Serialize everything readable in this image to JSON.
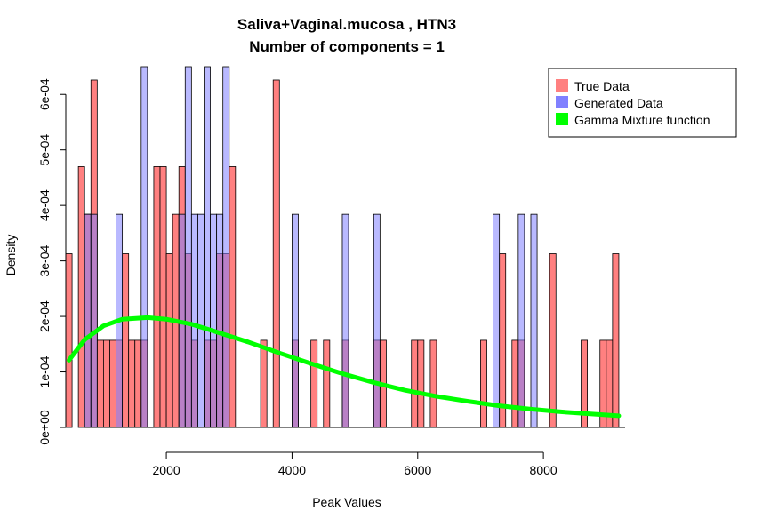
{
  "chart_data": {
    "type": "histogram",
    "title": "Saliva+Vaginal.mucosa , HTN3",
    "subtitle": "Number of components =  1",
    "xlabel": "Peak Values",
    "ylabel": "Density",
    "xlim": [
      400,
      9300
    ],
    "ylim": [
      0,
      0.00065
    ],
    "x_ticks": [
      2000,
      4000,
      6000,
      8000
    ],
    "x_tick_labels": [
      "2000",
      "4000",
      "6000",
      "8000"
    ],
    "y_ticks": [
      0,
      0.0001,
      0.0002,
      0.0003,
      0.0004,
      0.0005,
      0.0006
    ],
    "y_tick_labels": [
      "0e+00",
      "1e-04",
      "2e-04",
      "3e-04",
      "4e-04",
      "5e-04",
      "6e-04"
    ],
    "bin_width": 100,
    "legend": {
      "position": "top-right",
      "entries": [
        {
          "label": "True Data",
          "color": "#ff8080"
        },
        {
          "label": "Generated Data",
          "color": "#8080ff"
        },
        {
          "label": "Gamma Mixture function",
          "color": "#00ff00"
        }
      ]
    },
    "series": [
      {
        "name": "True Data",
        "color": "#ff8080",
        "opacity": 1,
        "bins": [
          [
            400,
            0.000313
          ],
          [
            600,
            0.00047
          ],
          [
            700,
            0.000384
          ],
          [
            800,
            0.000626
          ],
          [
            900,
            0.000157
          ],
          [
            1000,
            0.000157
          ],
          [
            1100,
            0.000157
          ],
          [
            1200,
            0.000157
          ],
          [
            1300,
            0.000313
          ],
          [
            1400,
            0.000157
          ],
          [
            1500,
            0.000157
          ],
          [
            1600,
            0.000157
          ],
          [
            1800,
            0.00047
          ],
          [
            1900,
            0.00047
          ],
          [
            2000,
            0.000313
          ],
          [
            2100,
            0.000384
          ],
          [
            2200,
            0.00047
          ],
          [
            2300,
            0.000313
          ],
          [
            2400,
            0.000157
          ],
          [
            2600,
            0.000157
          ],
          [
            2700,
            0.000157
          ],
          [
            2800,
            0.000313
          ],
          [
            2900,
            0.000313
          ],
          [
            3000,
            0.00047
          ],
          [
            3500,
            0.000157
          ],
          [
            3700,
            0.000626
          ],
          [
            4000,
            0.000157
          ],
          [
            4300,
            0.000157
          ],
          [
            4500,
            0.000157
          ],
          [
            4800,
            0.000157
          ],
          [
            5300,
            0.000157
          ],
          [
            5400,
            0.000157
          ],
          [
            5900,
            0.000157
          ],
          [
            6000,
            0.000157
          ],
          [
            6200,
            0.000157
          ],
          [
            7000,
            0.000157
          ],
          [
            7300,
            0.000313
          ],
          [
            7500,
            0.000157
          ],
          [
            7600,
            0.000157
          ],
          [
            8100,
            0.000313
          ],
          [
            8600,
            0.000157
          ],
          [
            8900,
            0.000157
          ],
          [
            9000,
            0.000157
          ],
          [
            9100,
            0.000313
          ]
        ]
      },
      {
        "name": "Generated Data",
        "color": "#8080ff",
        "opacity": 0.55,
        "bins": [
          [
            700,
            0.000384
          ],
          [
            800,
            0.000384
          ],
          [
            1200,
            0.000384
          ],
          [
            1600,
            0.00068
          ],
          [
            2200,
            0.000384
          ],
          [
            2300,
            0.00068
          ],
          [
            2400,
            0.000384
          ],
          [
            2500,
            0.000384
          ],
          [
            2600,
            0.00068
          ],
          [
            2700,
            0.000384
          ],
          [
            2800,
            0.000384
          ],
          [
            2900,
            0.00068
          ],
          [
            4000,
            0.000384
          ],
          [
            4800,
            0.000384
          ],
          [
            5300,
            0.000384
          ],
          [
            7200,
            0.000384
          ],
          [
            7600,
            0.000384
          ],
          [
            7800,
            0.000384
          ]
        ]
      }
    ],
    "curve": {
      "name": "Gamma Mixture function",
      "color": "#00ff00",
      "points": [
        [
          450,
          0.000121
        ],
        [
          700,
          0.000158
        ],
        [
          1000,
          0.000183
        ],
        [
          1300,
          0.000195
        ],
        [
          1700,
          0.000198
        ],
        [
          2000,
          0.000195
        ],
        [
          2400,
          0.000186
        ],
        [
          2800,
          0.000172
        ],
        [
          3300,
          0.000154
        ],
        [
          3800,
          0.000134
        ],
        [
          4300,
          0.000115
        ],
        [
          4800,
          9.7e-05
        ],
        [
          5300,
          8.1e-05
        ],
        [
          5800,
          6.7e-05
        ],
        [
          6300,
          5.6e-05
        ],
        [
          6800,
          4.7e-05
        ],
        [
          7300,
          3.9e-05
        ],
        [
          7800,
          3.3e-05
        ],
        [
          8300,
          2.8e-05
        ],
        [
          8800,
          2.4e-05
        ],
        [
          9200,
          2.1e-05
        ]
      ]
    }
  }
}
